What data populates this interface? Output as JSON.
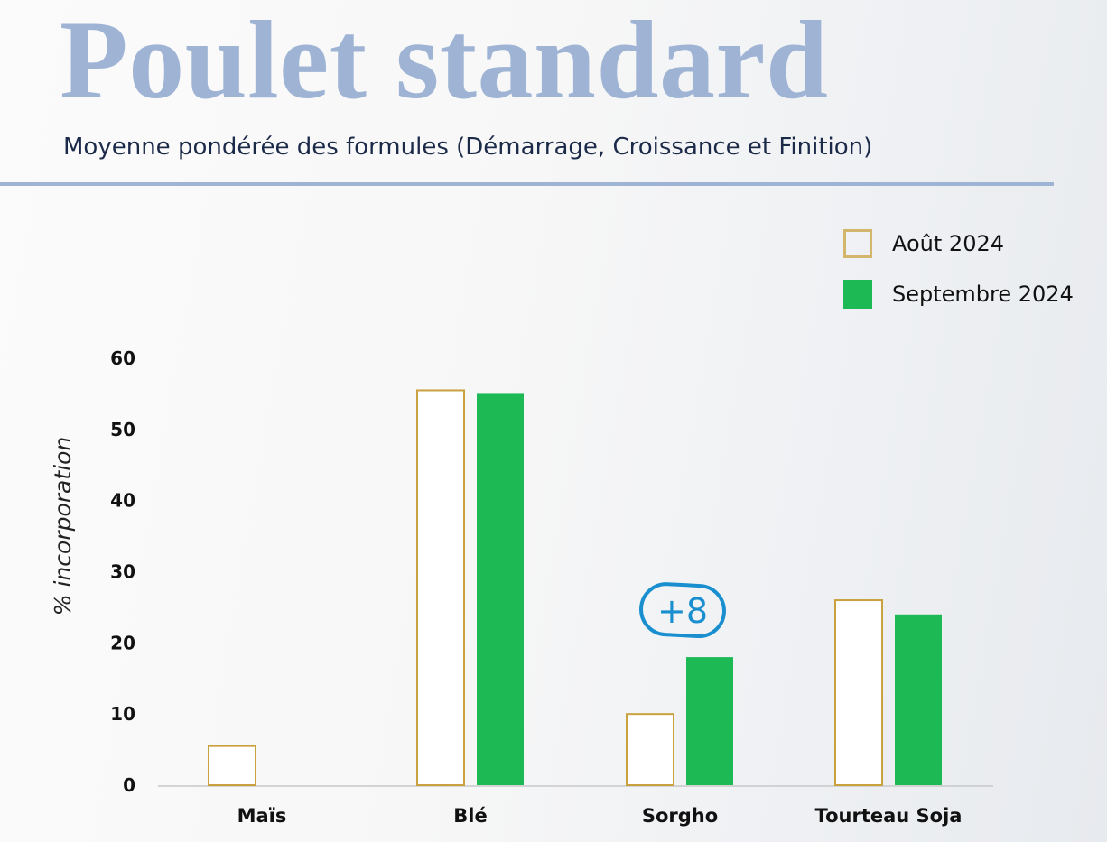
{
  "header": {
    "title": "Poulet standard",
    "subtitle": "Moyenne pondérée des formules (Démarrage, Croissance et Finition)"
  },
  "colors": {
    "title": "#9fb4d5",
    "aout": "#c9a13e",
    "septembre": "#1db954",
    "annotation": "#1a8fd0"
  },
  "chart_data": {
    "type": "bar",
    "categories": [
      "Maïs",
      "Blé",
      "Sorgho",
      "Tourteau Soja"
    ],
    "series": [
      {
        "name": "Août 2024",
        "values": [
          5.5,
          55.5,
          10,
          26
        ],
        "style": "outline",
        "color": "#c9a13e"
      },
      {
        "name": "Septembre 2024",
        "values": [
          0,
          55,
          18,
          24
        ],
        "style": "filled",
        "color": "#1db954"
      }
    ],
    "ylabel": "% incorporation",
    "yticks": [
      0,
      10,
      20,
      30,
      40,
      50,
      60
    ],
    "ylim": [
      0,
      60
    ],
    "grid": false,
    "legend": "top-right",
    "annotations": [
      {
        "text": "+8",
        "category": "Sorgho",
        "series": "Septembre 2024"
      }
    ]
  }
}
